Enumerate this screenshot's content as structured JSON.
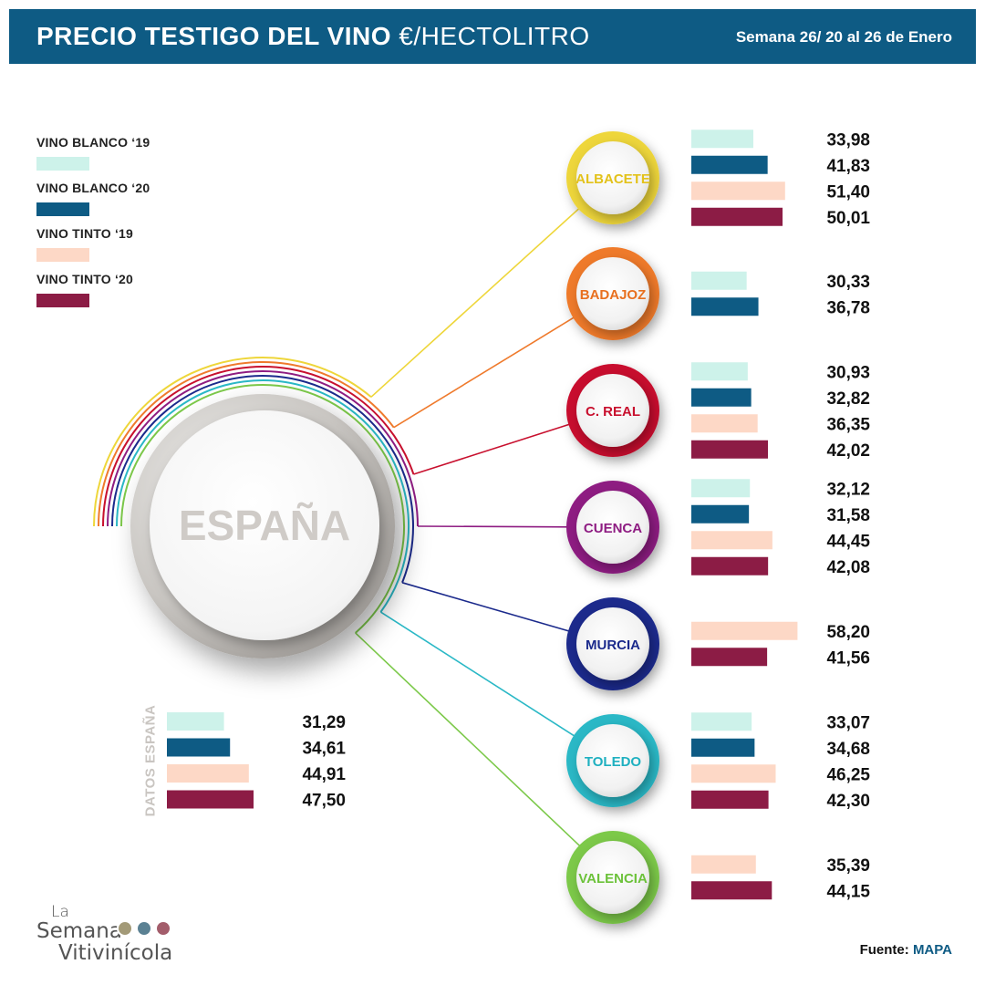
{
  "header": {
    "title_main": "PRECIO TESTIGO DEL VINO",
    "title_unit": "€/HECTOLITRO",
    "week": "Semana 26/ 20 al 26 de Enero"
  },
  "legend": [
    {
      "label": "VINO BLANCO ‘19",
      "color": "#cdf2ea"
    },
    {
      "label": "VINO BLANCO ‘20",
      "color": "#0e5b84"
    },
    {
      "label": "VINO TINTO ‘19",
      "color": "#fdd8c6"
    },
    {
      "label": "VINO TINTO ‘20",
      "color": "#8c1c45"
    }
  ],
  "center": {
    "label": "ESPAÑA",
    "side_label": "DATOS ESPAÑA"
  },
  "chart_data": {
    "type": "bar",
    "series_names": [
      "VINO BLANCO ‘19",
      "VINO BLANCO ‘20",
      "VINO TINTO ‘19",
      "VINO TINTO ‘20"
    ],
    "series_colors": [
      "#cdf2ea",
      "#0e5b84",
      "#fdd8c6",
      "#8c1c45"
    ],
    "espana": [
      {
        "series": 0,
        "value": 31.29,
        "label": "31,29"
      },
      {
        "series": 1,
        "value": 34.61,
        "label": "34,61"
      },
      {
        "series": 2,
        "value": 44.91,
        "label": "44,91"
      },
      {
        "series": 3,
        "value": 47.5,
        "label": "47,50"
      }
    ],
    "regions": [
      {
        "name": "ALBACETE",
        "color": "#eed63a",
        "text_color": "#e3c21b",
        "values": [
          {
            "series": 0,
            "value": 33.98,
            "label": "33,98"
          },
          {
            "series": 1,
            "value": 41.83,
            "label": "41,83"
          },
          {
            "series": 2,
            "value": 51.4,
            "label": "51,40"
          },
          {
            "series": 3,
            "value": 50.01,
            "label": "50,01"
          }
        ]
      },
      {
        "name": "BADAJOZ",
        "color": "#ef7a2c",
        "text_color": "#e8701f",
        "values": [
          {
            "series": 0,
            "value": 30.33,
            "label": "30,33"
          },
          {
            "series": 1,
            "value": 36.78,
            "label": "36,78"
          }
        ]
      },
      {
        "name": "C. REAL",
        "color": "#c8102e",
        "text_color": "#c8102e",
        "values": [
          {
            "series": 0,
            "value": 30.93,
            "label": "30,93"
          },
          {
            "series": 1,
            "value": 32.82,
            "label": "32,82"
          },
          {
            "series": 2,
            "value": 36.35,
            "label": "36,35"
          },
          {
            "series": 3,
            "value": 42.02,
            "label": "42,02"
          }
        ]
      },
      {
        "name": "CUENCA",
        "color": "#8e1c82",
        "text_color": "#8e1c82",
        "values": [
          {
            "series": 0,
            "value": 32.12,
            "label": "32,12"
          },
          {
            "series": 1,
            "value": 31.58,
            "label": "31,58"
          },
          {
            "series": 2,
            "value": 44.45,
            "label": "44,45"
          },
          {
            "series": 3,
            "value": 42.08,
            "label": "42,08"
          }
        ]
      },
      {
        "name": "MURCIA",
        "color": "#1b2a8c",
        "text_color": "#1b2a8c",
        "values": [
          {
            "series": 2,
            "value": 58.2,
            "label": "58,20"
          },
          {
            "series": 3,
            "value": 41.56,
            "label": "41,56"
          }
        ]
      },
      {
        "name": "TOLEDO",
        "color": "#2ab8c6",
        "text_color": "#1fb0c0",
        "values": [
          {
            "series": 0,
            "value": 33.07,
            "label": "33,07"
          },
          {
            "series": 1,
            "value": 34.68,
            "label": "34,68"
          },
          {
            "series": 2,
            "value": 46.25,
            "label": "46,25"
          },
          {
            "series": 3,
            "value": 42.3,
            "label": "42,30"
          }
        ]
      },
      {
        "name": "VALENCIA",
        "color": "#7cc94a",
        "text_color": "#6cc23a",
        "values": [
          {
            "series": 2,
            "value": 35.39,
            "label": "35,39"
          },
          {
            "series": 3,
            "value": 44.15,
            "label": "44,15"
          }
        ]
      }
    ]
  },
  "logo": {
    "line1": "La",
    "line2": "Semana",
    "line3": "Vitivinícola"
  },
  "footer": {
    "source_label": "Fuente:",
    "source_name": "MAPA"
  }
}
